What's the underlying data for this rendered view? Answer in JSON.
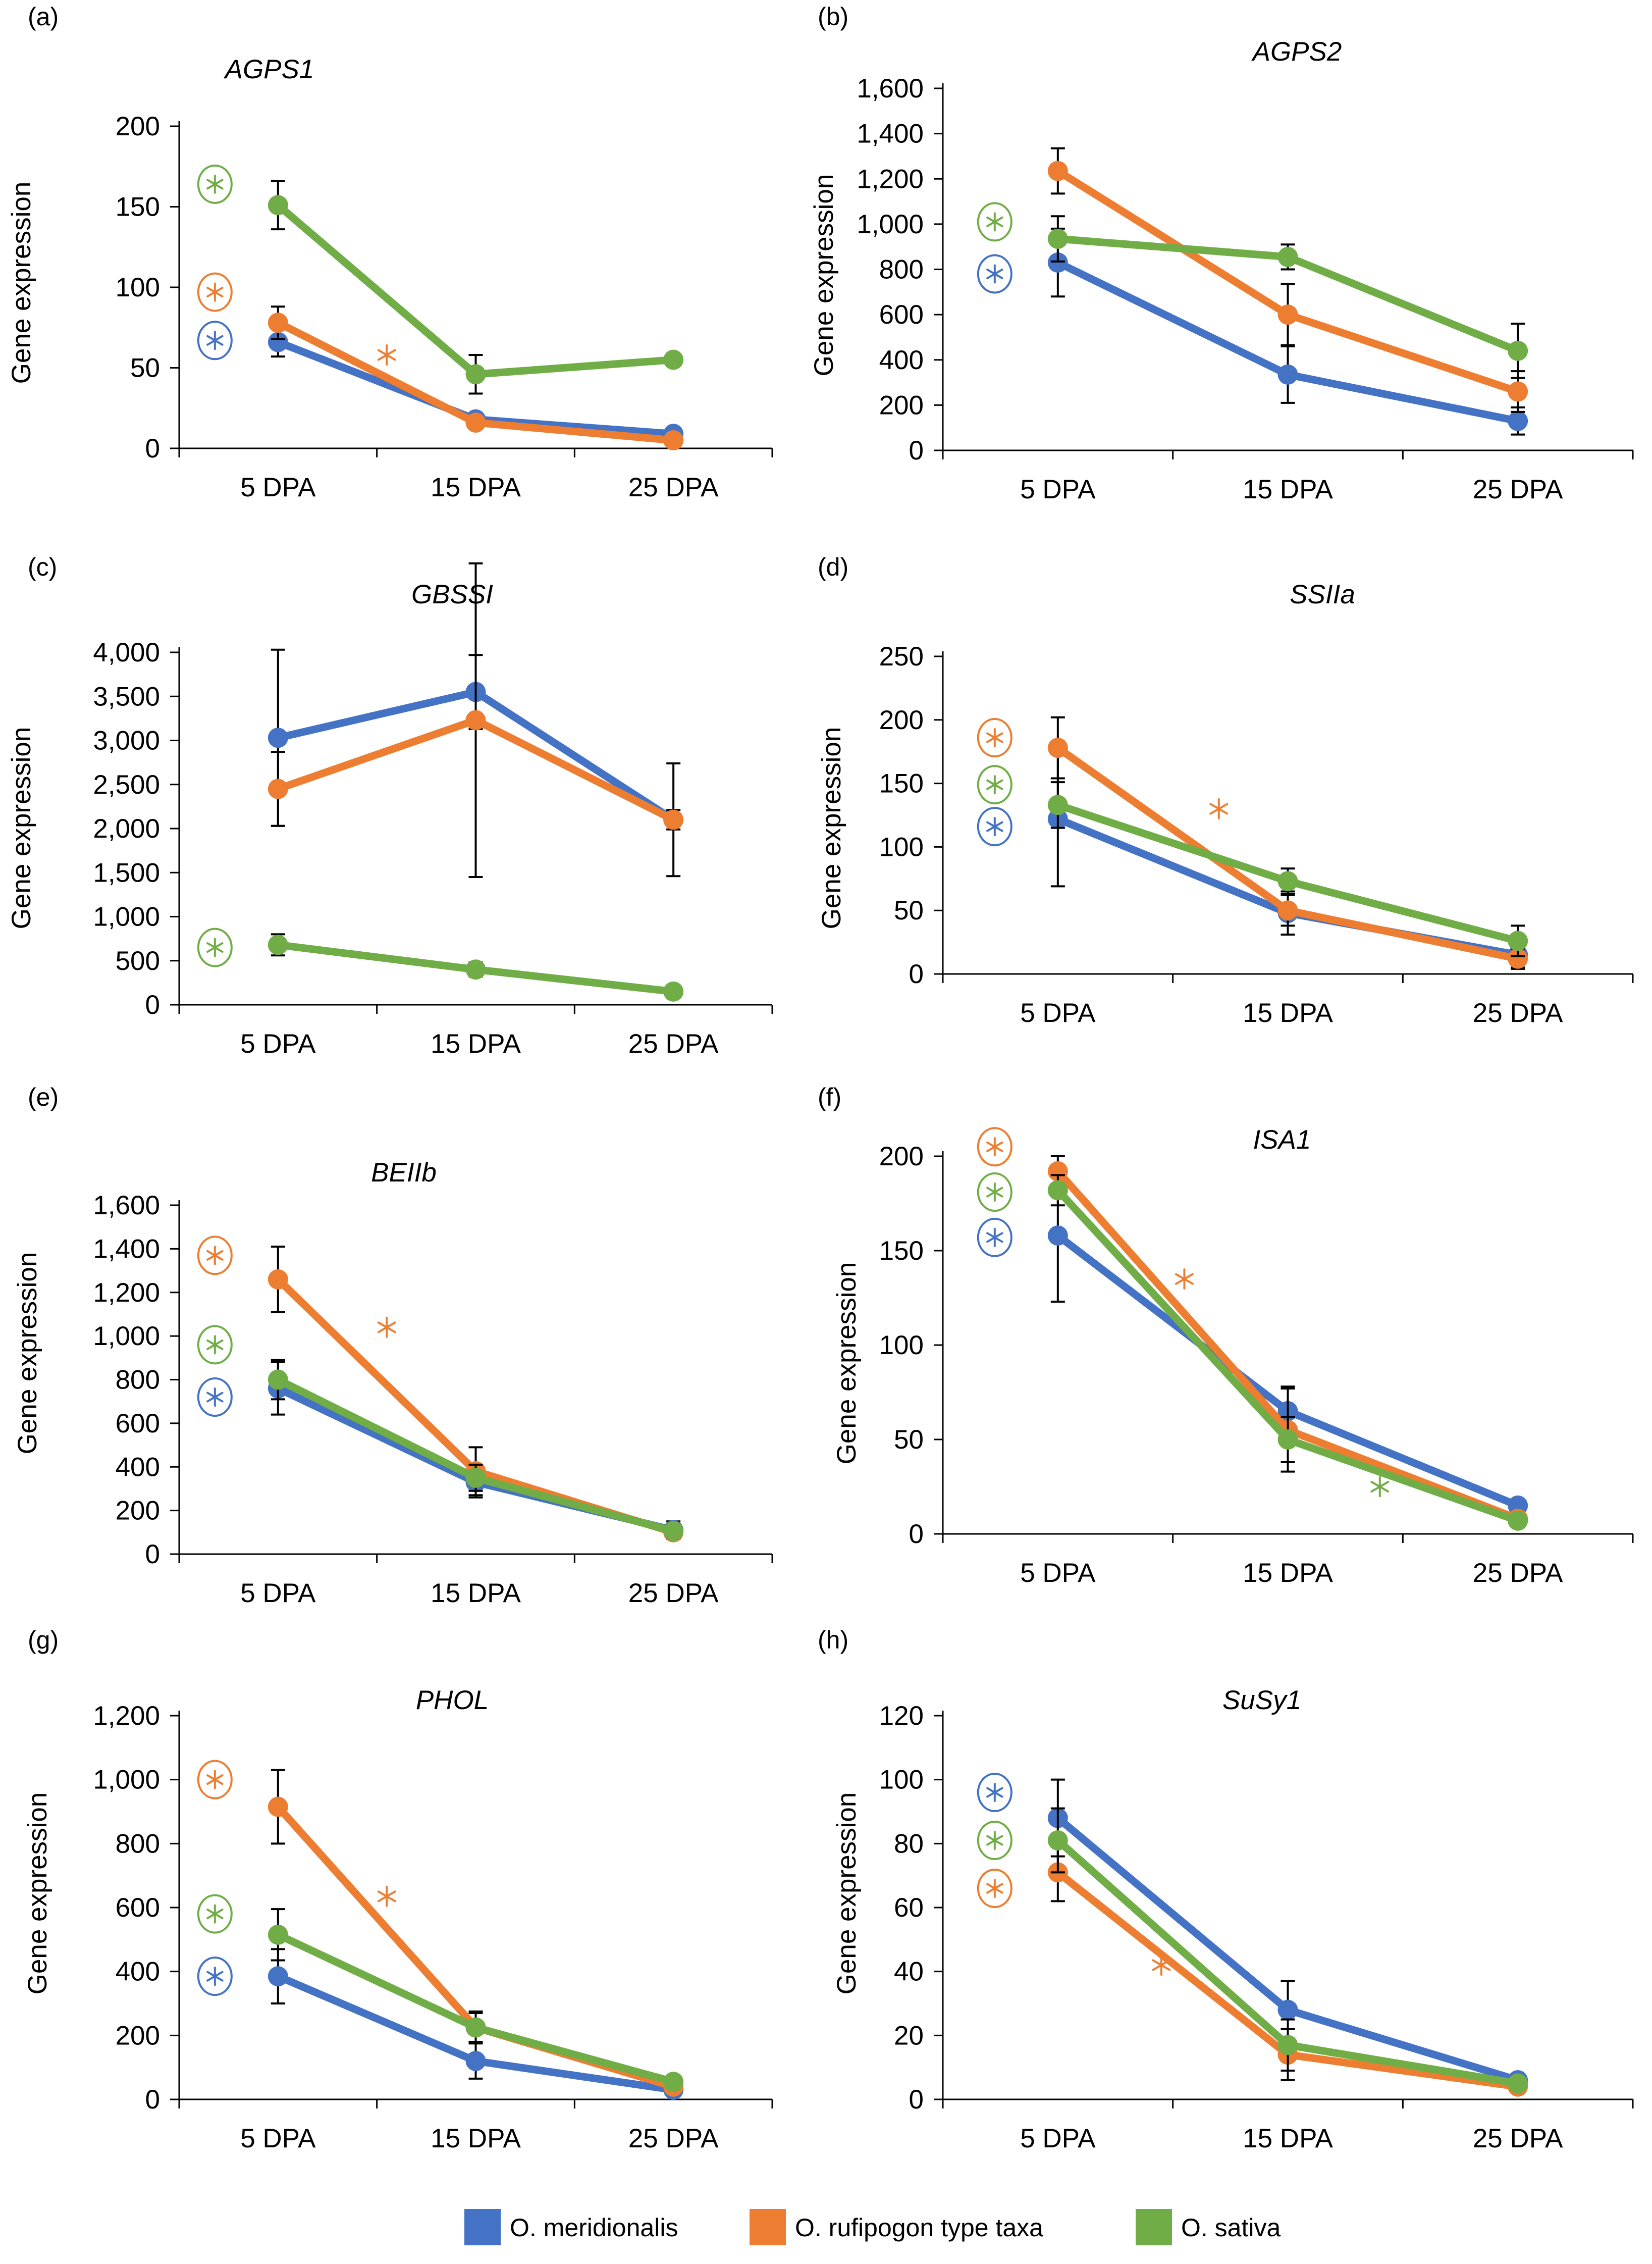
{
  "colors": {
    "O. meridionalis": "#4472c4",
    "O. rufipogon type taxa": "#ed7d31",
    "O. sativa": "#70ad47",
    "axis": "#000000",
    "error_bar": "#000000"
  },
  "legend": {
    "items": [
      "O. meridionalis",
      "O. rufipogon type taxa",
      "O. sativa"
    ]
  },
  "chart_data": [
    {
      "type": "line",
      "panel": "(a)",
      "title": "AGPS1",
      "ylabel": "Gene expression",
      "xlabel": "",
      "categories": [
        "5 DPA",
        "15 DPA",
        "25 DPA"
      ],
      "ylim": [
        0,
        200
      ],
      "yticks": [
        0,
        50,
        100,
        150,
        200
      ],
      "ytick_labels": [
        "0",
        "50",
        "100",
        "150",
        "200"
      ],
      "series": [
        {
          "name": "O. meridionalis",
          "values": [
            66,
            18,
            9
          ],
          "errors": [
            9,
            3,
            2
          ]
        },
        {
          "name": "O. rufipogon type taxa",
          "values": [
            78,
            16,
            5
          ],
          "errors": [
            10,
            3,
            1
          ]
        },
        {
          "name": "O. sativa",
          "values": [
            151,
            46,
            55
          ],
          "errors": [
            15,
            12,
            2
          ]
        }
      ],
      "significance_circled": [
        {
          "series": "O. sativa",
          "at": 0,
          "level": 164
        },
        {
          "series": "O. rufipogon type taxa",
          "at": 0,
          "level": 97
        },
        {
          "series": "O. meridionalis",
          "at": 0,
          "level": 67
        }
      ],
      "significance_plain": [
        {
          "series": "O. rufipogon type taxa",
          "at": 0.55,
          "level": 58
        }
      ]
    },
    {
      "type": "line",
      "panel": "(b)",
      "title": "AGPS2",
      "ylabel": "Gene expression",
      "xlabel": "",
      "categories": [
        "5 DPA",
        "15 DPA",
        "25 DPA"
      ],
      "ylim": [
        0,
        1600
      ],
      "yticks": [
        0,
        200,
        400,
        600,
        800,
        1000,
        1200,
        1400,
        1600
      ],
      "ytick_labels": [
        "0",
        "200",
        "400",
        "600",
        "800",
        "1,000",
        "1,200",
        "1,400",
        "1,600"
      ],
      "series": [
        {
          "name": "O. meridionalis",
          "values": [
            830,
            335,
            130
          ],
          "errors": [
            150,
            125,
            60
          ]
        },
        {
          "name": "O. rufipogon type taxa",
          "values": [
            1235,
            600,
            260
          ],
          "errors": [
            100,
            135,
            90
          ]
        },
        {
          "name": "O. sativa",
          "values": [
            935,
            855,
            440
          ],
          "errors": [
            100,
            55,
            120
          ]
        }
      ],
      "significance_circled": [
        {
          "series": "O. sativa",
          "at": 0,
          "level": 1010
        },
        {
          "series": "O. meridionalis",
          "at": 0,
          "level": 780
        }
      ],
      "significance_plain": []
    },
    {
      "type": "line",
      "panel": "(c)",
      "title": "GBSSI",
      "ylabel": "Gene expression",
      "xlabel": "",
      "categories": [
        "5 DPA",
        "15 DPA",
        "25 DPA"
      ],
      "ylim": [
        0,
        4000
      ],
      "yticks": [
        0,
        500,
        1000,
        1500,
        2000,
        2500,
        3000,
        3500,
        4000
      ],
      "ytick_labels": [
        "0",
        "500",
        "1,000",
        "1,500",
        "2,000",
        "2,500",
        "3,000",
        "3,500",
        "4,000"
      ],
      "series": [
        {
          "name": "O. meridionalis",
          "values": [
            3030,
            3550,
            2100
          ],
          "errors": [
            1000,
            420,
            110
          ]
        },
        {
          "name": "O. rufipogon type taxa",
          "values": [
            2450,
            3230,
            2100
          ],
          "errors": [
            420,
            1780,
            640
          ]
        },
        {
          "name": "O. sativa",
          "values": [
            680,
            400,
            150
          ],
          "errors": [
            120,
            80,
            30
          ]
        }
      ],
      "significance_circled": [
        {
          "series": "O. sativa",
          "at": 0,
          "level": 650
        }
      ],
      "significance_plain": []
    },
    {
      "type": "line",
      "panel": "(d)",
      "title": "SSIIa",
      "ylabel": "Gene expression",
      "xlabel": "",
      "categories": [
        "5 DPA",
        "15 DPA",
        "25 DPA"
      ],
      "ylim": [
        0,
        250
      ],
      "yticks": [
        0,
        50,
        100,
        150,
        200,
        250
      ],
      "ytick_labels": [
        "0",
        "50",
        "100",
        "150",
        "200",
        "250"
      ],
      "series": [
        {
          "name": "O. meridionalis",
          "values": [
            122,
            48,
            15
          ],
          "errors": [
            53,
            17,
            10
          ]
        },
        {
          "name": "O. rufipogon type taxa",
          "values": [
            178,
            50,
            12
          ],
          "errors": [
            24,
            12,
            8
          ]
        },
        {
          "name": "O. sativa",
          "values": [
            133,
            73,
            26
          ],
          "errors": [
            18,
            10,
            12
          ]
        }
      ],
      "significance_circled": [
        {
          "series": "O. rufipogon type taxa",
          "at": 0,
          "level": 186
        },
        {
          "series": "O. sativa",
          "at": 0,
          "level": 149
        },
        {
          "series": "O. meridionalis",
          "at": 0,
          "level": 116
        }
      ],
      "significance_plain": [
        {
          "series": "O. rufipogon type taxa",
          "at": 0.7,
          "level": 130
        }
      ]
    },
    {
      "type": "line",
      "panel": "(e)",
      "title": "BEIIb",
      "ylabel": "Gene expression",
      "xlabel": "",
      "categories": [
        "5 DPA",
        "15 DPA",
        "25 DPA"
      ],
      "ylim": [
        0,
        1600
      ],
      "yticks": [
        0,
        200,
        400,
        600,
        800,
        1000,
        1200,
        1400,
        1600
      ],
      "ytick_labels": [
        "0",
        "200",
        "400",
        "600",
        "800",
        "1,000",
        "1,200",
        "1,400",
        "1,600"
      ],
      "series": [
        {
          "name": "O. meridionalis",
          "values": [
            760,
            330,
            110
          ],
          "errors": [
            120,
            70,
            40
          ]
        },
        {
          "name": "O. rufipogon type taxa",
          "values": [
            1260,
            380,
            100
          ],
          "errors": [
            150,
            110,
            30
          ]
        },
        {
          "name": "O. sativa",
          "values": [
            800,
            350,
            105
          ],
          "errors": [
            90,
            60,
            30
          ]
        }
      ],
      "significance_circled": [
        {
          "series": "O. rufipogon type taxa",
          "at": 0,
          "level": 1370
        },
        {
          "series": "O. sativa",
          "at": 0,
          "level": 960
        },
        {
          "series": "O. meridionalis",
          "at": 0,
          "level": 720
        }
      ],
      "significance_plain": [
        {
          "series": "O. rufipogon type taxa",
          "at": 0.55,
          "level": 1040
        }
      ]
    },
    {
      "type": "line",
      "panel": "(f)",
      "title": "ISA1",
      "ylabel": "Gene expression",
      "xlabel": "",
      "categories": [
        "5 DPA",
        "15 DPA",
        "25 DPA"
      ],
      "ylim": [
        0,
        200
      ],
      "yticks": [
        0,
        50,
        100,
        150,
        200
      ],
      "ytick_labels": [
        "0",
        "50",
        "100",
        "150",
        "200"
      ],
      "series": [
        {
          "name": "O. meridionalis",
          "values": [
            158,
            65,
            15
          ],
          "errors": [
            35,
            13,
            3
          ]
        },
        {
          "name": "O. rufipogon type taxa",
          "values": [
            192,
            55,
            8
          ],
          "errors": [
            8,
            22,
            2
          ]
        },
        {
          "name": "O. sativa",
          "values": [
            182,
            50,
            7
          ],
          "errors": [
            8,
            12,
            2
          ]
        }
      ],
      "significance_circled": [
        {
          "series": "O. rufipogon type taxa",
          "at": 0,
          "level": 205
        },
        {
          "series": "O. sativa",
          "at": 0,
          "level": 181
        },
        {
          "series": "O. meridionalis",
          "at": 0,
          "level": 157
        }
      ],
      "significance_plain": [
        {
          "series": "O. rufipogon type taxa",
          "at": 0.55,
          "level": 135
        },
        {
          "series": "O. sativa",
          "at": 1.4,
          "level": 25
        }
      ]
    },
    {
      "type": "line",
      "panel": "(g)",
      "title": "PHOL",
      "ylabel": "Gene expression",
      "xlabel": "",
      "categories": [
        "5 DPA",
        "15 DPA",
        "25 DPA"
      ],
      "ylim": [
        0,
        1200
      ],
      "yticks": [
        0,
        200,
        400,
        600,
        800,
        1000,
        1200
      ],
      "ytick_labels": [
        "0",
        "200",
        "400",
        "600",
        "800",
        "1,000",
        "1,200"
      ],
      "series": [
        {
          "name": "O. meridionalis",
          "values": [
            385,
            120,
            30
          ],
          "errors": [
            85,
            55,
            20
          ]
        },
        {
          "name": "O. rufipogon type taxa",
          "values": [
            915,
            225,
            40
          ],
          "errors": [
            115,
            50,
            20
          ]
        },
        {
          "name": "O. sativa",
          "values": [
            515,
            225,
            55
          ],
          "errors": [
            80,
            45,
            15
          ]
        }
      ],
      "significance_circled": [
        {
          "series": "O. rufipogon type taxa",
          "at": 0,
          "level": 1000
        },
        {
          "series": "O. sativa",
          "at": 0,
          "level": 580
        },
        {
          "series": "O. meridionalis",
          "at": 0,
          "level": 385
        }
      ],
      "significance_plain": [
        {
          "series": "O. rufipogon type taxa",
          "at": 0.55,
          "level": 635
        }
      ]
    },
    {
      "type": "line",
      "panel": "(h)",
      "title": "SuSy1",
      "ylabel": "Gene expression",
      "xlabel": "",
      "categories": [
        "5 DPA",
        "15 DPA",
        "25 DPA"
      ],
      "ylim": [
        0,
        120
      ],
      "yticks": [
        0,
        20,
        40,
        60,
        80,
        100,
        120
      ],
      "ytick_labels": [
        "0",
        "20",
        "40",
        "60",
        "80",
        "100",
        "120"
      ],
      "series": [
        {
          "name": "O. meridionalis",
          "values": [
            88,
            28,
            6
          ],
          "errors": [
            12,
            9,
            2
          ]
        },
        {
          "name": "O. rufipogon type taxa",
          "values": [
            71,
            14,
            4
          ],
          "errors": [
            9,
            8,
            2
          ]
        },
        {
          "name": "O. sativa",
          "values": [
            81,
            17,
            5
          ],
          "errors": [
            10,
            8,
            2
          ]
        }
      ],
      "significance_circled": [
        {
          "series": "O. meridionalis",
          "at": 0,
          "level": 96
        },
        {
          "series": "O. sativa",
          "at": 0,
          "level": 81
        },
        {
          "series": "O. rufipogon type taxa",
          "at": 0,
          "level": 66
        }
      ],
      "significance_plain": [
        {
          "series": "O. rufipogon type taxa",
          "at": 0.45,
          "level": 42
        }
      ]
    }
  ]
}
